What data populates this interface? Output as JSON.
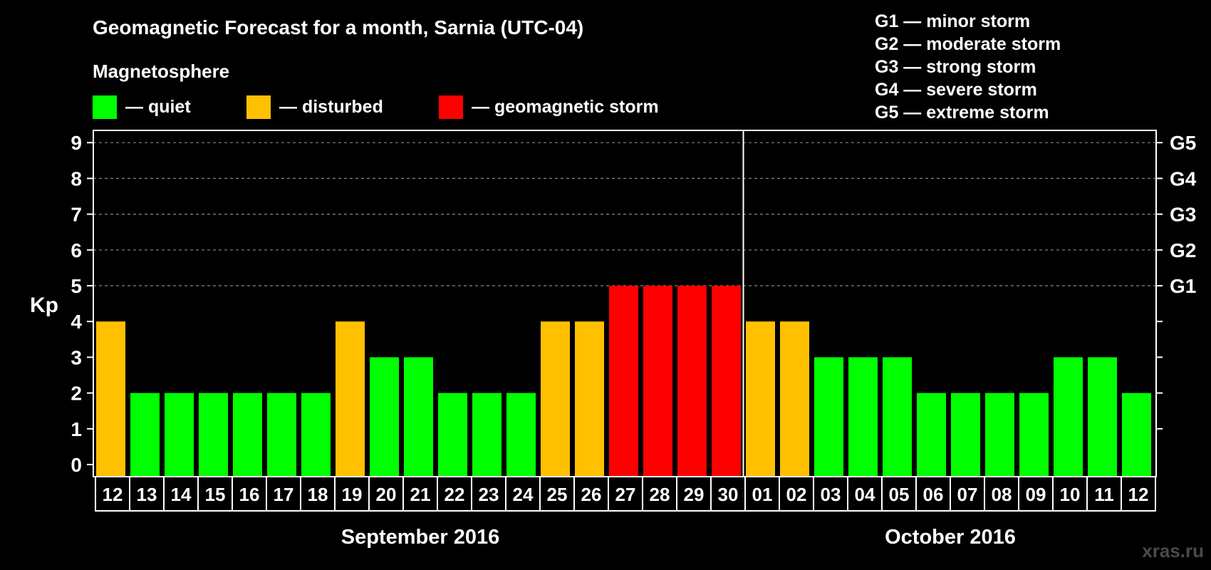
{
  "chart_data": {
    "type": "bar",
    "title": "Geomagnetic Forecast for a month, Sarnia (UTC-04)",
    "subtitle": "Magnetosphere",
    "legend": [
      {
        "label": "— quiet",
        "color": "#00ff00"
      },
      {
        "label": "— disturbed",
        "color": "#ffc000"
      },
      {
        "label": "— geomagnetic storm",
        "color": "#ff0000"
      }
    ],
    "storm_scale": [
      "G1 — minor storm",
      "G2 — moderate storm",
      "G3 — strong storm",
      "G4 — severe storm",
      "G5 — extreme storm"
    ],
    "ylabel": "Kp",
    "ylim": [
      0,
      9
    ],
    "yticks": [
      0,
      1,
      2,
      3,
      4,
      5,
      6,
      7,
      8,
      9
    ],
    "right_axis_labels": [
      {
        "kp": 5,
        "label": "G1"
      },
      {
        "kp": 6,
        "label": "G2"
      },
      {
        "kp": 7,
        "label": "G3"
      },
      {
        "kp": 8,
        "label": "G4"
      },
      {
        "kp": 9,
        "label": "G5"
      }
    ],
    "grid_lines_at": [
      5,
      6,
      7,
      8,
      9
    ],
    "categories": [
      "12",
      "13",
      "14",
      "15",
      "16",
      "17",
      "18",
      "19",
      "20",
      "21",
      "22",
      "23",
      "24",
      "25",
      "26",
      "27",
      "28",
      "29",
      "30",
      "01",
      "02",
      "03",
      "04",
      "05",
      "06",
      "07",
      "08",
      "09",
      "10",
      "11",
      "12"
    ],
    "values": [
      4,
      2,
      2,
      2,
      2,
      2,
      2,
      4,
      3,
      3,
      2,
      2,
      2,
      4,
      4,
      5,
      5,
      5,
      5,
      4,
      4,
      3,
      3,
      3,
      2,
      2,
      2,
      2,
      3,
      3,
      2
    ],
    "months": [
      {
        "label": "September 2016",
        "days": 19
      },
      {
        "label": "October 2016",
        "days": 12
      }
    ],
    "watermark": "xras.ru"
  }
}
